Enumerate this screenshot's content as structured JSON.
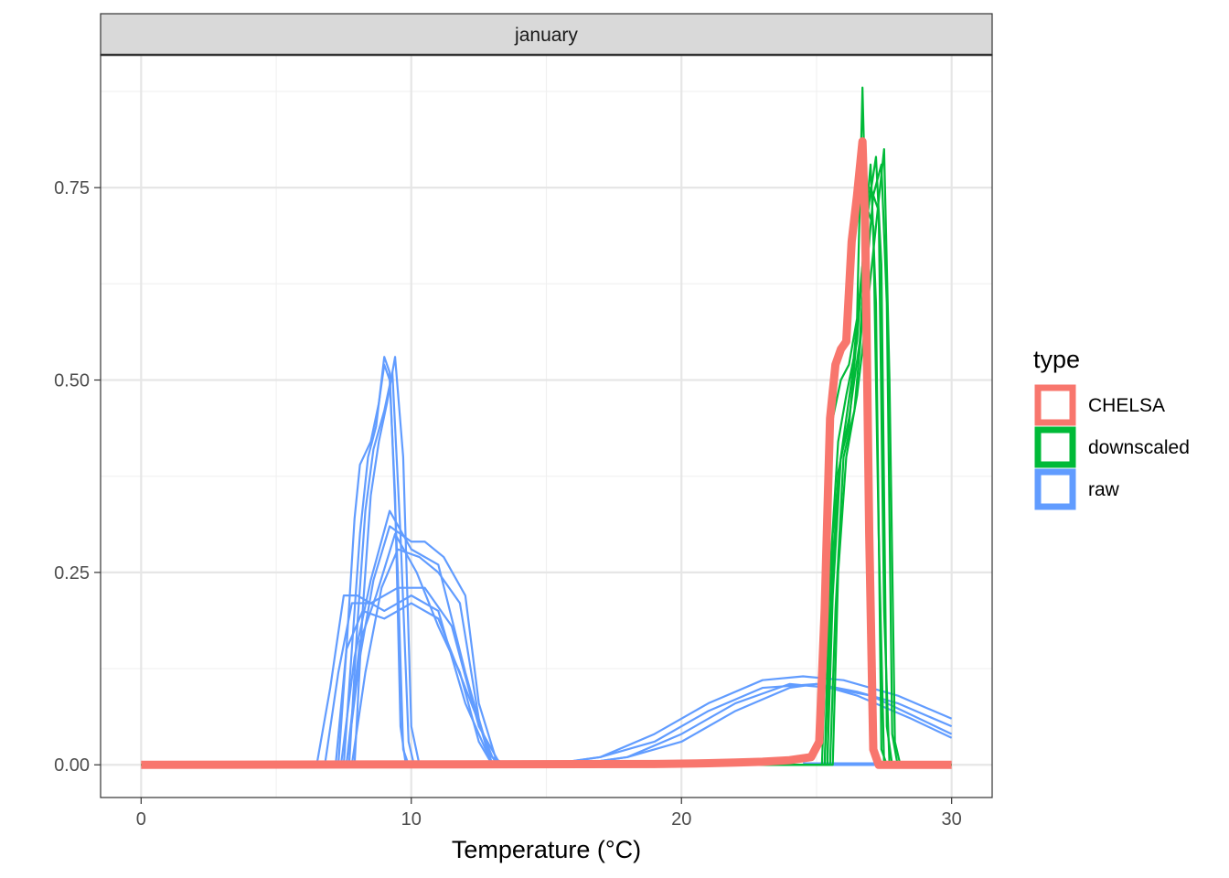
{
  "chart_data": {
    "type": "line",
    "facet": "january",
    "xlabel": "Temperature (°C)",
    "ylabel": "",
    "xlim": [
      -1.5,
      31.5
    ],
    "ylim": [
      -0.0425,
      0.9225
    ],
    "x_ticks": [
      0,
      10,
      20,
      30
    ],
    "x_tick_labels": [
      "0",
      "10",
      "20",
      "30"
    ],
    "y_ticks": [
      0,
      0.25,
      0.5,
      0.75
    ],
    "y_tick_labels": [
      "0.00",
      "0.25",
      "0.50",
      "0.75"
    ],
    "grid": true,
    "legend": {
      "title": "type",
      "position": "right",
      "entries": [
        {
          "label": "CHELSA",
          "color": "#F8766D"
        },
        {
          "label": "downscaled",
          "color": "#00BA38"
        },
        {
          "label": "raw",
          "color": "#619CFF"
        }
      ]
    },
    "series": [
      {
        "type": "raw",
        "color": "#619CFF",
        "values": [
          [
            0,
            0
          ],
          [
            6.5,
            0
          ],
          [
            7,
            0.1
          ],
          [
            7.5,
            0.22
          ],
          [
            8,
            0.22
          ],
          [
            9,
            0.2
          ],
          [
            10,
            0.22
          ],
          [
            11,
            0.2
          ],
          [
            12,
            0.08
          ],
          [
            13,
            0
          ],
          [
            30,
            0
          ]
        ]
      },
      {
        "type": "raw",
        "color": "#619CFF",
        "values": [
          [
            0,
            0
          ],
          [
            6.8,
            0
          ],
          [
            7.3,
            0.12
          ],
          [
            7.8,
            0.21
          ],
          [
            8.5,
            0.21
          ],
          [
            9.5,
            0.23
          ],
          [
            10.5,
            0.23
          ],
          [
            11.5,
            0.18
          ],
          [
            12.5,
            0.05
          ],
          [
            13.3,
            0
          ],
          [
            30,
            0
          ]
        ]
      },
      {
        "type": "raw",
        "color": "#619CFF",
        "values": [
          [
            0,
            0
          ],
          [
            7.2,
            0
          ],
          [
            7.6,
            0.15
          ],
          [
            8.2,
            0.2
          ],
          [
            9,
            0.19
          ],
          [
            10,
            0.21
          ],
          [
            11,
            0.19
          ],
          [
            12,
            0.1
          ],
          [
            13,
            0.01
          ],
          [
            13.5,
            0
          ],
          [
            30,
            0
          ]
        ]
      },
      {
        "type": "raw",
        "color": "#619CFF",
        "values": [
          [
            0,
            0
          ],
          [
            7.4,
            0
          ],
          [
            7.9,
            0.14
          ],
          [
            8.5,
            0.24
          ],
          [
            9.2,
            0.33
          ],
          [
            10,
            0.28
          ],
          [
            11,
            0.26
          ],
          [
            12,
            0.12
          ],
          [
            12.8,
            0.02
          ],
          [
            13.2,
            0
          ],
          [
            30,
            0
          ]
        ]
      },
      {
        "type": "raw",
        "color": "#619CFF",
        "values": [
          [
            0,
            0
          ],
          [
            7.6,
            0
          ],
          [
            8.1,
            0.14
          ],
          [
            8.6,
            0.24
          ],
          [
            9.2,
            0.31
          ],
          [
            10,
            0.29
          ],
          [
            10.5,
            0.29
          ],
          [
            11.2,
            0.27
          ],
          [
            12,
            0.22
          ],
          [
            12.5,
            0.08
          ],
          [
            13.2,
            0
          ],
          [
            30,
            0
          ]
        ]
      },
      {
        "type": "raw",
        "color": "#619CFF",
        "values": [
          [
            0,
            0
          ],
          [
            7.8,
            0
          ],
          [
            8.3,
            0.12
          ],
          [
            8.9,
            0.23
          ],
          [
            9.5,
            0.28
          ],
          [
            10.3,
            0.27
          ],
          [
            11,
            0.25
          ],
          [
            11.8,
            0.21
          ],
          [
            12.5,
            0.06
          ],
          [
            13,
            0
          ],
          [
            30,
            0
          ]
        ]
      },
      {
        "type": "raw",
        "color": "#619CFF",
        "values": [
          [
            0,
            0
          ],
          [
            7.6,
            0
          ],
          [
            8.1,
            0.16
          ],
          [
            8.7,
            0.22
          ],
          [
            9.4,
            0.3
          ],
          [
            10.2,
            0.25
          ],
          [
            11,
            0.18
          ],
          [
            11.8,
            0.12
          ],
          [
            12.5,
            0.03
          ],
          [
            13,
            0
          ],
          [
            30,
            0
          ]
        ]
      },
      {
        "type": "raw",
        "color": "#619CFF",
        "values": [
          [
            0,
            0
          ],
          [
            7.3,
            0
          ],
          [
            7.6,
            0.15
          ],
          [
            7.9,
            0.32
          ],
          [
            8.1,
            0.39
          ],
          [
            8.5,
            0.42
          ],
          [
            8.8,
            0.47
          ],
          [
            9,
            0.52
          ],
          [
            9.2,
            0.5
          ],
          [
            9.4,
            0.35
          ],
          [
            9.6,
            0.05
          ],
          [
            9.8,
            0
          ],
          [
            30,
            0
          ]
        ]
      },
      {
        "type": "raw",
        "color": "#619CFF",
        "values": [
          [
            0,
            0
          ],
          [
            7.5,
            0
          ],
          [
            7.8,
            0.15
          ],
          [
            8.1,
            0.3
          ],
          [
            8.4,
            0.4
          ],
          [
            8.7,
            0.44
          ],
          [
            9,
            0.53
          ],
          [
            9.2,
            0.51
          ],
          [
            9.5,
            0.25
          ],
          [
            9.7,
            0.02
          ],
          [
            9.9,
            0
          ],
          [
            30,
            0
          ]
        ]
      },
      {
        "type": "raw",
        "color": "#619CFF",
        "values": [
          [
            0,
            0
          ],
          [
            7.7,
            0
          ],
          [
            8,
            0.18
          ],
          [
            8.3,
            0.33
          ],
          [
            8.6,
            0.41
          ],
          [
            9,
            0.46
          ],
          [
            9.3,
            0.51
          ],
          [
            9.6,
            0.3
          ],
          [
            9.9,
            0.03
          ],
          [
            10.1,
            0
          ],
          [
            30,
            0
          ]
        ]
      },
      {
        "type": "raw",
        "color": "#619CFF",
        "values": [
          [
            0,
            0
          ],
          [
            7.9,
            0
          ],
          [
            8.2,
            0.2
          ],
          [
            8.5,
            0.35
          ],
          [
            8.8,
            0.42
          ],
          [
            9.1,
            0.47
          ],
          [
            9.4,
            0.53
          ],
          [
            9.7,
            0.4
          ],
          [
            10,
            0.05
          ],
          [
            10.3,
            0
          ],
          [
            30,
            0
          ]
        ]
      },
      {
        "type": "raw",
        "color": "#619CFF",
        "values": [
          [
            0,
            0
          ],
          [
            15,
            0
          ],
          [
            17,
            0.01
          ],
          [
            19,
            0.04
          ],
          [
            21,
            0.08
          ],
          [
            23,
            0.11
          ],
          [
            24.5,
            0.115
          ],
          [
            26,
            0.11
          ],
          [
            28,
            0.09
          ],
          [
            30,
            0.06
          ]
        ]
      },
      {
        "type": "raw",
        "color": "#619CFF",
        "values": [
          [
            0,
            0
          ],
          [
            15,
            0
          ],
          [
            17,
            0.01
          ],
          [
            19,
            0.03
          ],
          [
            21,
            0.07
          ],
          [
            23,
            0.1
          ],
          [
            25,
            0.105
          ],
          [
            26.5,
            0.095
          ],
          [
            28,
            0.08
          ],
          [
            30,
            0.05
          ]
        ]
      },
      {
        "type": "raw",
        "color": "#619CFF",
        "values": [
          [
            0,
            0
          ],
          [
            16,
            0
          ],
          [
            18,
            0.01
          ],
          [
            20,
            0.04
          ],
          [
            22,
            0.08
          ],
          [
            24,
            0.105
          ],
          [
            25.5,
            0.1
          ],
          [
            27,
            0.09
          ],
          [
            28.5,
            0.065
          ],
          [
            30,
            0.04
          ]
        ]
      },
      {
        "type": "raw",
        "color": "#619CFF",
        "values": [
          [
            0,
            0
          ],
          [
            16,
            0
          ],
          [
            18,
            0.01
          ],
          [
            20,
            0.03
          ],
          [
            22,
            0.07
          ],
          [
            24,
            0.1
          ],
          [
            25,
            0.105
          ],
          [
            26.5,
            0.09
          ],
          [
            28.5,
            0.06
          ],
          [
            30,
            0.035
          ]
        ]
      },
      {
        "type": "raw",
        "color": "#619CFF",
        "values": [
          [
            24.5,
            0.002
          ],
          [
            30,
            0.002
          ]
        ]
      },
      {
        "type": "downscaled",
        "color": "#00BA38",
        "values": [
          [
            0,
            0
          ],
          [
            25.2,
            0
          ],
          [
            25.4,
            0.2
          ],
          [
            25.6,
            0.45
          ],
          [
            25.9,
            0.5
          ],
          [
            26.2,
            0.52
          ],
          [
            26.5,
            0.58
          ],
          [
            26.7,
            0.88
          ],
          [
            26.9,
            0.6
          ],
          [
            27.1,
            0.02
          ],
          [
            27.3,
            0
          ],
          [
            30,
            0
          ]
        ]
      },
      {
        "type": "downscaled",
        "color": "#00BA38",
        "values": [
          [
            0,
            0
          ],
          [
            25.3,
            0
          ],
          [
            25.5,
            0.25
          ],
          [
            25.8,
            0.42
          ],
          [
            26.1,
            0.48
          ],
          [
            26.5,
            0.55
          ],
          [
            26.8,
            0.7
          ],
          [
            27,
            0.78
          ],
          [
            27.2,
            0.6
          ],
          [
            27.4,
            0.02
          ],
          [
            27.6,
            0
          ],
          [
            30,
            0
          ]
        ]
      },
      {
        "type": "downscaled",
        "color": "#00BA38",
        "values": [
          [
            0,
            0
          ],
          [
            25.4,
            0
          ],
          [
            25.6,
            0.3
          ],
          [
            25.9,
            0.4
          ],
          [
            26.2,
            0.44
          ],
          [
            26.6,
            0.6
          ],
          [
            26.9,
            0.72
          ],
          [
            27.2,
            0.79
          ],
          [
            27.4,
            0.65
          ],
          [
            27.6,
            0.05
          ],
          [
            27.8,
            0
          ],
          [
            30,
            0
          ]
        ]
      },
      {
        "type": "downscaled",
        "color": "#00BA38",
        "values": [
          [
            0,
            0
          ],
          [
            25.5,
            0
          ],
          [
            25.7,
            0.2
          ],
          [
            26,
            0.4
          ],
          [
            26.4,
            0.46
          ],
          [
            26.8,
            0.62
          ],
          [
            27.1,
            0.74
          ],
          [
            27.4,
            0.78
          ],
          [
            27.6,
            0.6
          ],
          [
            27.8,
            0.04
          ],
          [
            28,
            0
          ],
          [
            30,
            0
          ]
        ]
      },
      {
        "type": "downscaled",
        "color": "#00BA38",
        "values": [
          [
            0,
            0
          ],
          [
            25.6,
            0
          ],
          [
            25.8,
            0.25
          ],
          [
            26.1,
            0.4
          ],
          [
            26.5,
            0.48
          ],
          [
            26.9,
            0.6
          ],
          [
            27.2,
            0.7
          ],
          [
            27.5,
            0.8
          ],
          [
            27.7,
            0.5
          ],
          [
            27.9,
            0.03
          ],
          [
            28.1,
            0
          ],
          [
            30,
            0
          ]
        ]
      },
      {
        "type": "downscaled",
        "color": "#00BA38",
        "values": [
          [
            0,
            0
          ],
          [
            25.3,
            0
          ],
          [
            25.5,
            0.18
          ],
          [
            25.8,
            0.38
          ],
          [
            26.2,
            0.45
          ],
          [
            26.6,
            0.55
          ],
          [
            26.9,
            0.72
          ],
          [
            27.1,
            0.7
          ],
          [
            27.3,
            0.3
          ],
          [
            27.5,
            0
          ],
          [
            30,
            0
          ]
        ]
      },
      {
        "type": "downscaled",
        "color": "#00BA38",
        "values": [
          [
            0,
            0
          ],
          [
            25.4,
            0
          ],
          [
            25.6,
            0.22
          ],
          [
            25.9,
            0.4
          ],
          [
            26.3,
            0.5
          ],
          [
            26.7,
            0.65
          ],
          [
            27,
            0.75
          ],
          [
            27.3,
            0.72
          ],
          [
            27.5,
            0.2
          ],
          [
            27.7,
            0
          ],
          [
            30,
            0
          ]
        ]
      },
      {
        "type": "CHELSA",
        "color": "#F8766D",
        "values": [
          [
            0,
            0
          ],
          [
            19,
            0.001
          ],
          [
            21,
            0.002
          ],
          [
            22,
            0.003
          ],
          [
            23,
            0.004
          ],
          [
            24,
            0.006
          ],
          [
            24.8,
            0.01
          ],
          [
            25.1,
            0.03
          ],
          [
            25.3,
            0.2
          ],
          [
            25.5,
            0.45
          ],
          [
            25.7,
            0.52
          ],
          [
            25.9,
            0.54
          ],
          [
            26.1,
            0.55
          ],
          [
            26.3,
            0.68
          ],
          [
            26.5,
            0.74
          ],
          [
            26.7,
            0.81
          ],
          [
            26.8,
            0.7
          ],
          [
            26.95,
            0.3
          ],
          [
            27.1,
            0.02
          ],
          [
            27.3,
            0
          ],
          [
            30,
            0
          ]
        ]
      }
    ]
  }
}
